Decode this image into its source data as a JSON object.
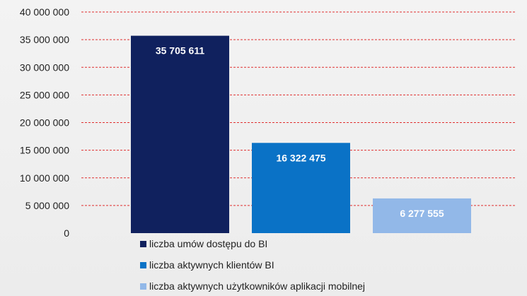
{
  "chart_data": {
    "type": "bar",
    "series": [
      {
        "name": "liczba umów dostępu do BI",
        "value": 35705611,
        "label": "35 705 611",
        "color": "#10215e"
      },
      {
        "name": "liczba aktywnych klientów BI",
        "value": 16322475,
        "label": "16 322 475",
        "color": "#0a72c6"
      },
      {
        "name": "liczba aktywnych użytkowników aplikacji mobilnej",
        "value": 6277555,
        "label": "6 277 555",
        "color": "#92b8e8"
      }
    ],
    "yticks": [
      "0",
      "5 000 000",
      "10 000 000",
      "15 000 000",
      "20 000 000",
      "25 000 000",
      "30 000 000",
      "35 000 000",
      "40 000 000"
    ],
    "ylim": [
      0,
      40000000
    ],
    "gridlines": true,
    "gridline_color": "#e03030",
    "legend_position": "bottom"
  }
}
